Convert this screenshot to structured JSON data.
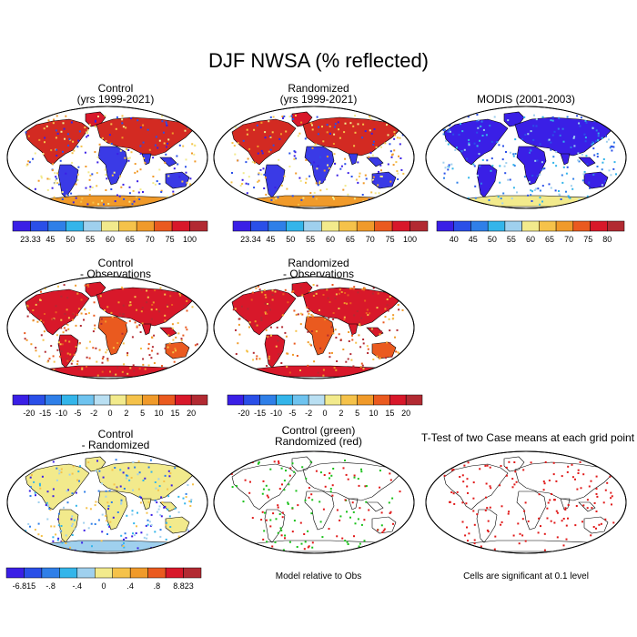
{
  "figure": {
    "title": "DJF NWSA (% reflected)"
  },
  "panels": [
    {
      "id": "control",
      "title_line1": "Control",
      "title_line2": "(yrs 1999-2021)",
      "style": "full-high",
      "colorbar": {
        "labels": [
          "23.33",
          "45",
          "50",
          "55",
          "60",
          "65",
          "70",
          "75",
          "100"
        ],
        "colors": [
          "#3a1fe6",
          "#2a4fe8",
          "#2f7fe8",
          "#33b5ea",
          "#9fd0ee",
          "#f2ea8c",
          "#f5c24a",
          "#f09a2a",
          "#ea5a1f",
          "#d8182a",
          "#b22a32"
        ]
      }
    },
    {
      "id": "randomized",
      "title_line1": "Randomized",
      "title_line2": "(yrs 1999-2021)",
      "style": "full-high",
      "colorbar": {
        "labels": [
          "23.34",
          "45",
          "50",
          "55",
          "60",
          "65",
          "70",
          "75",
          "100"
        ],
        "colors": [
          "#3a1fe6",
          "#2a4fe8",
          "#2f7fe8",
          "#33b5ea",
          "#9fd0ee",
          "#f2ea8c",
          "#f5c24a",
          "#f09a2a",
          "#ea5a1f",
          "#d8182a",
          "#b22a32"
        ]
      }
    },
    {
      "id": "modis",
      "title_line1": "MODIS (2001-2003)",
      "title_line2": "",
      "style": "full-low",
      "colorbar": {
        "labels": [
          "40",
          "45",
          "50",
          "55",
          "60",
          "65",
          "70",
          "75",
          "80"
        ],
        "colors": [
          "#3a1fe6",
          "#2a4fe8",
          "#2f7fe8",
          "#33b5ea",
          "#9fd0ee",
          "#f2ea8c",
          "#f5c24a",
          "#f09a2a",
          "#ea5a1f",
          "#d8182a",
          "#b22a32"
        ]
      }
    },
    {
      "id": "control-obs",
      "title_line1": "Control",
      "title_line2": "- Observations",
      "style": "full-diff",
      "colorbar": {
        "labels": [
          "-20",
          "-15",
          "-10",
          "-5",
          "-2",
          "0",
          "2",
          "5",
          "10",
          "15",
          "20"
        ],
        "colors": [
          "#3a1fe6",
          "#2a4fe8",
          "#2f7fe8",
          "#33b5ea",
          "#6ec3ef",
          "#b9dff2",
          "#f2ea8c",
          "#f5c24a",
          "#f09a2a",
          "#ea5a1f",
          "#d8182a",
          "#b22a32"
        ]
      }
    },
    {
      "id": "randomized-obs",
      "title_line1": "Randomized",
      "title_line2": "- Observations",
      "style": "full-diff",
      "colorbar": {
        "labels": [
          "-20",
          "-15",
          "-10",
          "-5",
          "-2",
          "0",
          "2",
          "5",
          "10",
          "15",
          "20"
        ],
        "colors": [
          "#3a1fe6",
          "#2a4fe8",
          "#2f7fe8",
          "#33b5ea",
          "#6ec3ef",
          "#b9dff2",
          "#f2ea8c",
          "#f5c24a",
          "#f09a2a",
          "#ea5a1f",
          "#d8182a",
          "#b22a32"
        ]
      }
    },
    {
      "id": "control-rand",
      "title_line1": "Control",
      "title_line2": "- Randomized",
      "style": "full-mixed",
      "colorbar": {
        "labels": [
          "-6.815",
          "-.8",
          "-.4",
          "0",
          ".4",
          ".8",
          "8.823"
        ],
        "colors": [
          "#3a1fe6",
          "#2a4fe8",
          "#2f7fe8",
          "#33b5ea",
          "#9fd0ee",
          "#f2ea8c",
          "#f5c24a",
          "#f09a2a",
          "#ea5a1f",
          "#d8182a",
          "#b22a32"
        ]
      }
    },
    {
      "id": "model-rel-obs",
      "title_line1": "Control (green)",
      "title_line2": "Randomized (red)",
      "style": "sparse-gr",
      "note": "Model relative to Obs"
    },
    {
      "id": "ttest",
      "title_line1": "T-Test of two Case means at each grid point",
      "title_line2": "",
      "style": "sparse-red",
      "note": "Cells are significant at 0.1 level"
    }
  ]
}
